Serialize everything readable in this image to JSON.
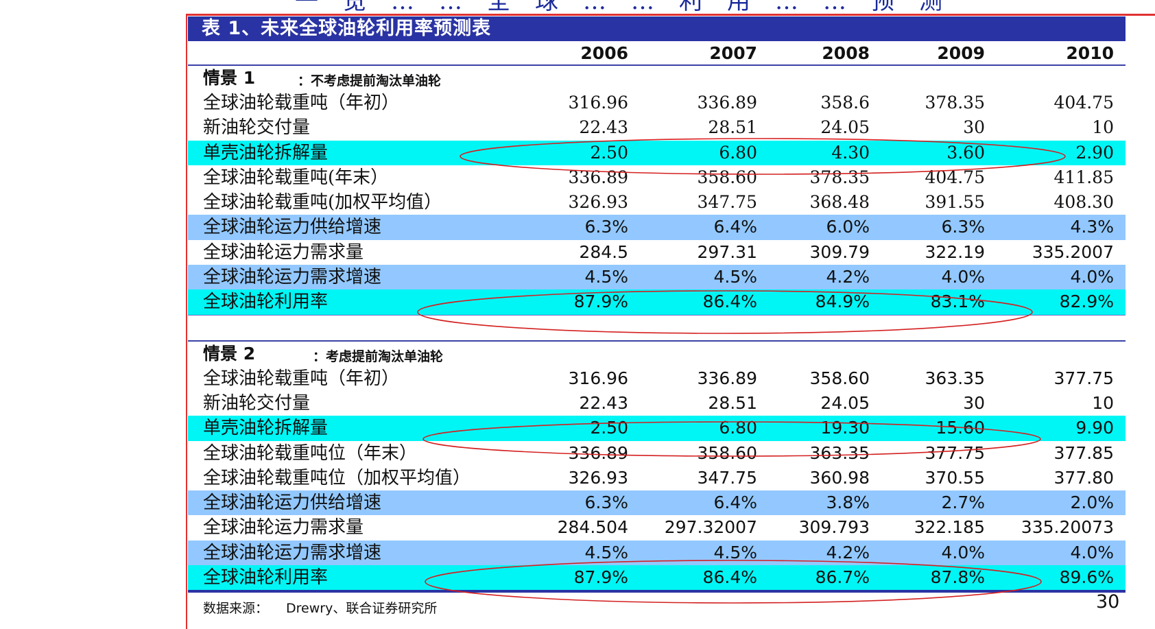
{
  "top_title_fragment": "一览……全球……利用……预测",
  "title": "表 1、未来全球油轮利用率预测表",
  "years": [
    "2006",
    "2007",
    "2008",
    "2009",
    "2010"
  ],
  "scenario1": {
    "label": "情景 1",
    "note": "：不考虑提前淘汰单油轮",
    "rows": [
      {
        "label": "全球油轮载重吨（年初）",
        "values": [
          "316.96",
          "336.89",
          "358.6",
          "378.35",
          "404.75"
        ],
        "style": "plain",
        "serif": true
      },
      {
        "label": "新油轮交付量",
        "values": [
          "22.43",
          "28.51",
          "24.05",
          "30",
          "10"
        ],
        "style": "plain",
        "serif": true
      },
      {
        "label": "单壳油轮拆解量",
        "values": [
          "2.50",
          "6.80",
          "4.30",
          "3.60",
          "2.90"
        ],
        "style": "cyan",
        "serif": true
      },
      {
        "label": "全球油轮载重吨(年末）",
        "values": [
          "336.89",
          "358.60",
          "378.35",
          "404.75",
          "411.85"
        ],
        "style": "plain",
        "serif": true
      },
      {
        "label": "全球油轮载重吨(加权平均值）",
        "values": [
          "326.93",
          "347.75",
          "368.48",
          "391.55",
          "408.30"
        ],
        "style": "plain",
        "serif": true
      },
      {
        "label": "全球油轮运力供给增速",
        "values": [
          "6.3%",
          "6.4%",
          "6.0%",
          "6.3%",
          "4.3%"
        ],
        "style": "blue",
        "serif": false
      },
      {
        "label": "全球油轮运力需求量",
        "values": [
          "284.5",
          "297.31",
          "309.79",
          "322.19",
          "335.2007"
        ],
        "style": "plain",
        "serif": false
      },
      {
        "label": "全球油轮运力需求增速",
        "values": [
          "4.5%",
          "4.5%",
          "4.2%",
          "4.0%",
          "4.0%"
        ],
        "style": "blue",
        "serif": false
      },
      {
        "label": "全球油轮利用率",
        "values": [
          "87.9%",
          "86.4%",
          "84.9%",
          "83.1%",
          "82.9%"
        ],
        "style": "cyan",
        "serif": false
      }
    ]
  },
  "scenario2": {
    "label": "情景 2",
    "note": "：考虑提前淘汰单油轮",
    "rows": [
      {
        "label": "全球油轮载重吨（年初）",
        "values": [
          "316.96",
          "336.89",
          "358.60",
          "363.35",
          "377.75"
        ],
        "style": "plain",
        "serif": false
      },
      {
        "label": "新油轮交付量",
        "values": [
          "22.43",
          "28.51",
          "24.05",
          "30",
          "10"
        ],
        "style": "plain",
        "serif": false
      },
      {
        "label": "单壳油轮拆解量",
        "values": [
          "2.50",
          "6.80",
          "19.30",
          "15.60",
          "9.90"
        ],
        "style": "cyan",
        "serif": false
      },
      {
        "label": "全球油轮载重吨位（年末）",
        "values": [
          "336.89",
          "358.60",
          "363.35",
          "377.75",
          "377.85"
        ],
        "style": "plain",
        "serif": false
      },
      {
        "label": "全球油轮载重吨位（加权平均值）",
        "values": [
          "326.93",
          "347.75",
          "360.98",
          "370.55",
          "377.80"
        ],
        "style": "plain",
        "serif": false
      },
      {
        "label": "全球油轮运力供给增速",
        "values": [
          "6.3%",
          "6.4%",
          "3.8%",
          "2.7%",
          "2.0%"
        ],
        "style": "blue",
        "serif": false
      },
      {
        "label": "全球油轮运力需求量",
        "values": [
          "284.504",
          "297.32007",
          "309.793",
          "322.185",
          "335.20073"
        ],
        "style": "plain",
        "serif": false
      },
      {
        "label": "全球油轮运力需求增速",
        "values": [
          "4.5%",
          "4.5%",
          "4.2%",
          "4.0%",
          "4.0%"
        ],
        "style": "blue",
        "serif": false
      },
      {
        "label": "全球油轮利用率",
        "values": [
          "87.9%",
          "86.4%",
          "86.7%",
          "87.8%",
          "89.6%"
        ],
        "style": "cyan",
        "serif": false
      }
    ]
  },
  "source_label": "数据来源：",
  "source_value": "Drewry、联合证券研究所",
  "page_number": "30",
  "colors": {
    "title_bar": "#2a33a3",
    "cyan_row": "#00f5f5",
    "blue_row": "#92c8ff",
    "oval": "#d42020"
  }
}
